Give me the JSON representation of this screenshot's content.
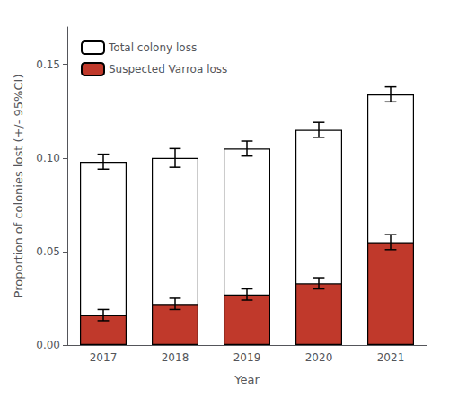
{
  "chart_data": {
    "type": "bar",
    "xlabel": "Year",
    "ylabel": "Proportion of colonies lost (+/- 95%CI)",
    "categories": [
      "2017",
      "2018",
      "2019",
      "2020",
      "2021"
    ],
    "series": [
      {
        "name": "Total colony loss",
        "color": "#ffffff",
        "values": [
          0.098,
          0.1,
          0.105,
          0.115,
          0.134
        ],
        "errors": [
          0.004,
          0.005,
          0.004,
          0.004,
          0.004
        ]
      },
      {
        "name": "Suspected Varroa loss",
        "color": "#c0392b",
        "values": [
          0.016,
          0.022,
          0.027,
          0.033,
          0.055
        ],
        "errors": [
          0.003,
          0.003,
          0.003,
          0.003,
          0.004
        ]
      }
    ],
    "stacked": false,
    "ylim": [
      0,
      0.17
    ],
    "yticks": [
      {
        "value": 0,
        "label": "0.00"
      },
      0.05,
      {
        "value": 0.1,
        "label": "0.10"
      },
      0.15
    ],
    "grid": false,
    "legend": "upper left"
  }
}
